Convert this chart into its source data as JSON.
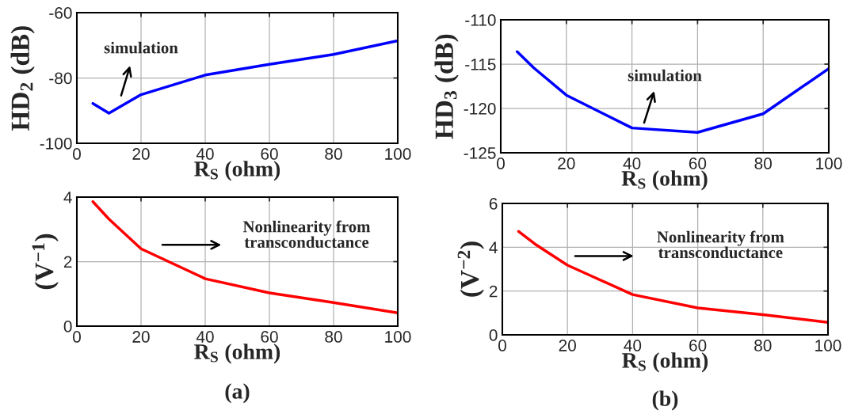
{
  "chart_data": [
    {
      "type": "line",
      "xlabel": "R$_{S}$ (ohm)",
      "ylabel": "HD$_{2}$ (dB)",
      "x": [
        5,
        10,
        20,
        40,
        60,
        80,
        100
      ],
      "series": [
        {
          "color": "#0000ff",
          "values": [
            -87.8,
            -90.8,
            -85.1,
            -79.1,
            -75.8,
            -72.8,
            -68.6
          ]
        }
      ],
      "xlim": [
        0,
        100
      ],
      "xticks": [
        0,
        20,
        40,
        60,
        80,
        100
      ],
      "ylim": [
        -100,
        -60
      ],
      "yticks": [
        -100,
        -80,
        -60
      ],
      "grid": true,
      "annotations": [
        "simulation"
      ]
    },
    {
      "type": "line",
      "xlabel": "R$_{S}$ (ohm)",
      "ylabel": "HD$_{3}$ (dB)",
      "x": [
        5,
        10,
        20,
        40,
        60,
        80,
        100
      ],
      "series": [
        {
          "color": "#0000ff",
          "values": [
            -113.6,
            -115.4,
            -118.5,
            -122.2,
            -122.7,
            -120.6,
            -115.5
          ]
        }
      ],
      "xlim": [
        0,
        100
      ],
      "xticks": [
        0,
        20,
        40,
        60,
        80,
        100
      ],
      "ylim": [
        -125,
        -110
      ],
      "yticks": [
        -125,
        -120,
        -115,
        -110
      ],
      "grid": true,
      "annotations": [
        "simulation"
      ]
    },
    {
      "type": "line",
      "xlabel": "R$_{S}$ (ohm)",
      "ylabel": "(V$^{−1}$)",
      "x": [
        5,
        10,
        20,
        40,
        60,
        80,
        100
      ],
      "series": [
        {
          "color": "#ff0000",
          "values": [
            3.86,
            3.32,
            2.4,
            1.47,
            1.03,
            0.73,
            0.41
          ]
        }
      ],
      "xlim": [
        0,
        100
      ],
      "xticks": [
        0,
        20,
        40,
        60,
        80,
        100
      ],
      "ylim": [
        0,
        4
      ],
      "yticks": [
        0,
        2,
        4
      ],
      "grid": true,
      "annotations": [
        "Nonlinearity from\ntransconductance",
        "(a)"
      ]
    },
    {
      "type": "line",
      "xlabel": "R$_{S}$ (ohm)",
      "ylabel": "(V$^{−2}$)",
      "x": [
        5,
        10,
        20,
        40,
        60,
        80,
        100
      ],
      "series": [
        {
          "color": "#ff0000",
          "values": [
            4.72,
            4.15,
            3.18,
            1.84,
            1.23,
            0.92,
            0.57
          ]
        }
      ],
      "xlim": [
        0,
        100
      ],
      "xticks": [
        0,
        20,
        40,
        60,
        80,
        100
      ],
      "ylim": [
        0,
        6
      ],
      "yticks": [
        0,
        2,
        4,
        6
      ],
      "grid": true,
      "annotations": [
        "Nonlinearity from\ntransconductance",
        "(b)"
      ]
    }
  ]
}
